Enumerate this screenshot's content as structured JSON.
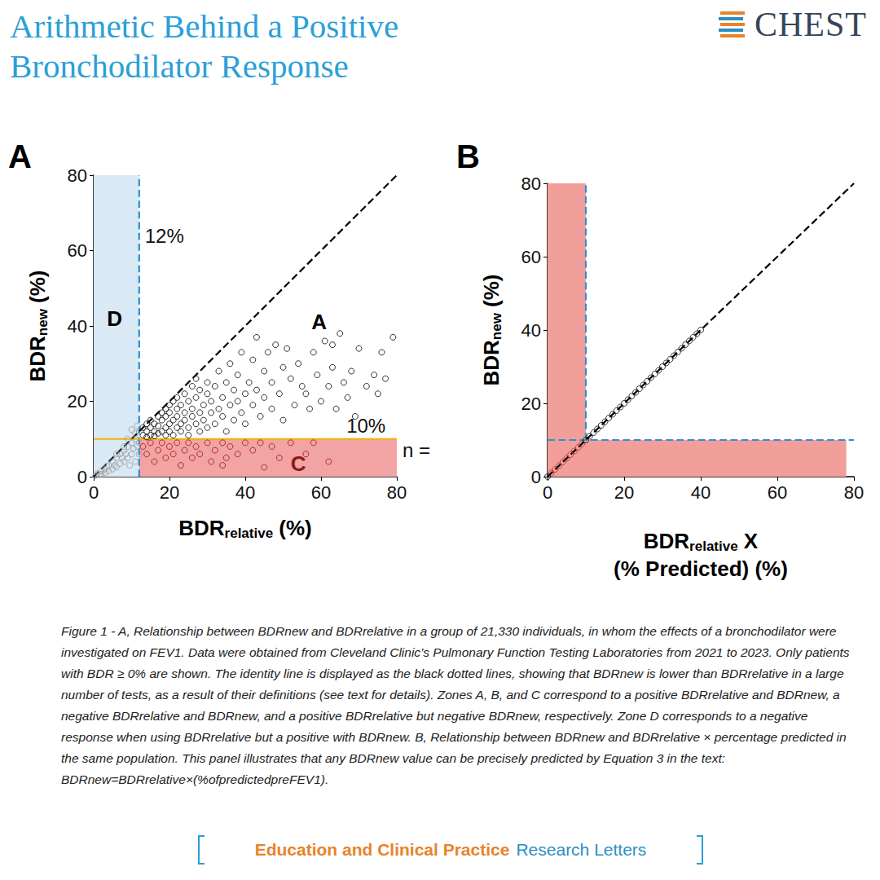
{
  "header": {
    "title": [
      "Arithmetic Behind a Positive",
      "Bronchodilator Response"
    ],
    "logo": "CHEST"
  },
  "chart_data": [
    {
      "type": "scatter",
      "panel": "A",
      "xlabel": {
        "main": "BDR",
        "sub": "relative",
        "unit": "(%)"
      },
      "ylabel": {
        "main": "BDR",
        "sub": "new",
        "unit": "(%)"
      },
      "xlim": [
        0,
        80
      ],
      "ylim": [
        0,
        80
      ],
      "xticks": [
        0,
        20,
        40,
        60,
        80
      ],
      "yticks": [
        0,
        20,
        40,
        60,
        80
      ],
      "grid": false,
      "bands": [
        {
          "x": [
            0,
            12
          ],
          "y": [
            0,
            80
          ],
          "color": "#d9e9f6"
        },
        {
          "x": [
            12,
            80
          ],
          "y": [
            0,
            10
          ],
          "color": "#f2a3a3"
        }
      ],
      "lines": [
        {
          "x": [
            12,
            12
          ],
          "y": [
            0,
            80
          ],
          "color": "#2f8fd0",
          "line_style": "dashed"
        },
        {
          "x": [
            0,
            80
          ],
          "y": [
            10,
            10
          ],
          "color": "#f0b400",
          "line_style": "solid"
        },
        {
          "x": [
            0,
            80
          ],
          "y": [
            0,
            80
          ],
          "color": "#000000",
          "line_style": "dashed"
        }
      ],
      "series": [
        {
          "color": "#9b9b9b",
          "marker": "open_circle",
          "x": [
            0.5,
            1,
            1.5,
            2,
            2,
            3,
            3,
            3.5,
            4,
            4,
            5,
            5,
            5.5,
            6,
            6,
            7,
            7,
            7.5,
            8,
            8,
            8.5,
            9,
            9,
            9.5,
            10,
            10,
            10.5,
            11,
            11,
            11.5,
            12,
            12,
            12,
            11,
            10,
            9,
            8,
            6,
            11.5
          ],
          "values": [
            0.3,
            0.8,
            0.5,
            1.5,
            0.7,
            2,
            1,
            2.8,
            3,
            1.5,
            4,
            2,
            3,
            5,
            2.5,
            6,
            3.5,
            5,
            7,
            4,
            6,
            8,
            5,
            3,
            9,
            6,
            7.5,
            10,
            4,
            8,
            12,
            9,
            6,
            11.5,
            12.5,
            10,
            8,
            6,
            13.5
          ]
        },
        {
          "color": "#a01010",
          "marker": "open_circle",
          "x": [
            13,
            14,
            15,
            16,
            17,
            18,
            19,
            20,
            21,
            22,
            23,
            24,
            25,
            26,
            27,
            28,
            30,
            31,
            32,
            34,
            35,
            36,
            38,
            40,
            42,
            44,
            47,
            49,
            52,
            56,
            58,
            62,
            34,
            45
          ],
          "values": [
            8,
            6,
            9,
            4,
            7,
            9,
            5,
            8,
            6,
            9,
            3,
            7,
            9,
            5,
            8,
            6,
            9,
            4,
            7,
            9,
            5,
            8,
            6,
            9,
            7,
            9,
            8,
            5,
            9,
            6,
            9,
            4,
            3,
            2.5
          ]
        },
        {
          "color": "#000000",
          "marker": "open_circle",
          "x": [
            13,
            13,
            14,
            14,
            14,
            15,
            15,
            15,
            16,
            16,
            16,
            17,
            17,
            17,
            18,
            18,
            18,
            19,
            19,
            19,
            19,
            20,
            20,
            20,
            20,
            21,
            21,
            21,
            22,
            22,
            22,
            22,
            23,
            23,
            23,
            24,
            24,
            24,
            25,
            25,
            25,
            26,
            26,
            26,
            27,
            27,
            27,
            28,
            28,
            28,
            29,
            29,
            30,
            30,
            30,
            31,
            31,
            32,
            32,
            33,
            33,
            34,
            34,
            35,
            35,
            36,
            36,
            37,
            37,
            38,
            38,
            39,
            39,
            40,
            40,
            41,
            42,
            42,
            43,
            43,
            44,
            45,
            45,
            46,
            47,
            47,
            48,
            49,
            50,
            50,
            51,
            52,
            53,
            54,
            55,
            56,
            57,
            58,
            59,
            60,
            61,
            62,
            63,
            64,
            65,
            66,
            67,
            68,
            70,
            72,
            74,
            76,
            77,
            79,
            75,
            69,
            63
          ],
          "values": [
            11,
            13,
            12,
            10.5,
            14,
            11,
            13,
            15,
            12,
            14,
            10.8,
            11.5,
            13.5,
            16,
            12,
            15,
            17,
            11,
            13,
            16,
            18,
            12,
            14,
            17,
            19,
            11,
            15,
            20,
            13,
            16,
            18,
            21,
            12,
            14,
            19,
            15,
            17,
            22,
            11,
            13,
            20,
            16,
            18,
            24,
            14,
            21,
            26,
            12,
            17,
            23,
            15,
            19,
            13,
            22,
            25,
            17,
            20,
            14,
            24,
            18,
            28,
            16,
            21,
            12,
            25,
            19,
            30,
            15,
            23,
            20,
            27,
            17,
            33,
            22,
            14,
            25,
            19,
            31,
            37,
            23,
            16,
            28,
            21,
            33,
            18,
            25,
            35,
            22,
            29,
            15,
            34,
            26,
            19,
            30,
            24,
            22,
            18,
            33,
            27,
            20,
            36,
            24,
            29,
            18,
            38,
            25,
            21,
            28,
            34,
            24,
            27,
            33,
            26,
            37,
            22,
            16,
            35
          ]
        }
      ],
      "zone_labels": [
        {
          "text": "D",
          "x": 5.5,
          "y": 42,
          "color": "#000000"
        },
        {
          "text": "A",
          "x": 59.5,
          "y": 41,
          "color": "#000000"
        },
        {
          "text": "C",
          "x": 54,
          "y": 3.5,
          "color": "#8b1a1a"
        }
      ],
      "annotations": [
        {
          "text": "12%",
          "x": 13.5,
          "y": 64
        },
        {
          "text": "10%",
          "x": 66.7,
          "y": 13.6
        },
        {
          "text": "n =",
          "x": 81.5,
          "y": 7
        }
      ]
    },
    {
      "type": "scatter",
      "panel": "B",
      "xlabel": {
        "main": "BDR",
        "sub": "relative",
        "rest": "X",
        "line2": "(% Predicted) (%)"
      },
      "ylabel": {
        "main": "BDR",
        "sub": "new",
        "unit": "(%)"
      },
      "xlim": [
        0,
        80
      ],
      "ylim": [
        0,
        80
      ],
      "xticks": [
        0,
        20,
        40,
        60,
        80
      ],
      "yticks": [
        0,
        20,
        40,
        60,
        80
      ],
      "grid": false,
      "bands": [
        {
          "x": [
            0,
            10
          ],
          "y": [
            0,
            80
          ],
          "color": "#f29e9a"
        },
        {
          "x": [
            10,
            78
          ],
          "y": [
            0,
            10
          ],
          "color": "#f29e9a"
        }
      ],
      "lines": [
        {
          "x": [
            10,
            10
          ],
          "y": [
            10,
            80
          ],
          "color": "#2f8fd0",
          "line_style": "dashed"
        },
        {
          "x": [
            0,
            80
          ],
          "y": [
            10,
            10
          ],
          "color": "#2f8fd0",
          "line_style": "dashed"
        },
        {
          "x": [
            0,
            80
          ],
          "y": [
            0,
            80
          ],
          "color": "#000000",
          "line_style": "dashed"
        }
      ],
      "series": [
        {
          "color": "#b03030",
          "marker": "open_circle",
          "x": [
            1,
            2,
            3,
            4,
            5,
            6,
            7,
            8,
            9
          ],
          "values": [
            1,
            2,
            3,
            4,
            5,
            6,
            7,
            8,
            9
          ]
        },
        {
          "color": "#000000",
          "marker": "open_circle",
          "x": [
            0,
            10,
            11,
            12,
            13,
            14,
            15,
            16,
            17,
            18,
            19,
            20,
            21,
            22,
            23,
            24,
            25,
            26,
            27,
            28,
            29,
            30,
            31,
            32,
            33,
            34,
            35,
            36,
            37,
            38,
            39,
            40
          ],
          "values": [
            0,
            10,
            11,
            12,
            13,
            14,
            15,
            16,
            17,
            18,
            19,
            20,
            21,
            22,
            23,
            24,
            25,
            26,
            27,
            28,
            29,
            30,
            31,
            32,
            33,
            34,
            35,
            36,
            37,
            38,
            39,
            40
          ]
        }
      ],
      "zone_labels": [],
      "annotations": []
    }
  ],
  "caption": "Figure 1 - A, Relationship between BDRnew and BDRrelative in a group of 21,330 individuals, in whom the effects of a bronchodilator were investigated on FEV1. Data were obtained from Cleveland Clinic’s Pulmonary Function Testing Laboratories from 2021 to 2023. Only patients with BDR ≥ 0% are shown. The identity line is displayed as the black dotted lines, showing that BDRnew is lower than BDRrelative in a large number of tests, as a result of their definitions (see text for details). Zones A, B, and C correspond to a positive BDRrelative and BDRnew, a negative BDRrelative and BDRnew, and a positive BDRrelative but negative BDRnew, respectively. Zone D corresponds to a negative response when using BDRrelative but a positive with BDRnew. B, Relationship between BDRnew and BDRrelative × percentage predicted in the same population. This panel illustrates that any BDRnew value can be precisely predicted by Equation 3 in the text: BDRnew=BDRrelative×(%ofpredictedpreFEV1).",
  "footer": {
    "left": "Education and Clinical Practice",
    "right": "Research Letters"
  }
}
